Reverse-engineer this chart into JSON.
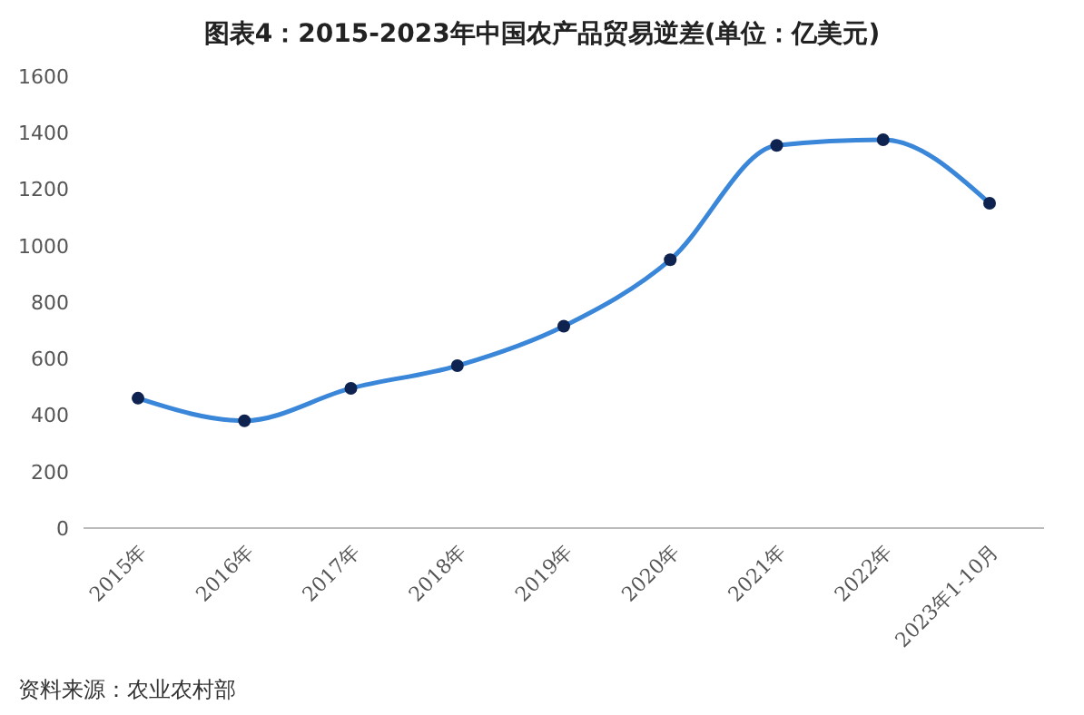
{
  "chart_data": {
    "type": "line",
    "title": "图表4：2015-2023年中国农产品贸易逆差(单位：亿美元)",
    "categories": [
      "2015年",
      "2016年",
      "2017年",
      "2018年",
      "2019年",
      "2020年",
      "2021年",
      "2022年",
      "2023年1-10月"
    ],
    "series": [
      {
        "color": "#3a86d8",
        "values": [
          460,
          380,
          495,
          575,
          715,
          950,
          1355,
          1375,
          1150
        ]
      }
    ],
    "ylim": [
      0,
      1600
    ],
    "yticks": [
      0,
      200,
      400,
      600,
      800,
      1000,
      1200,
      1400,
      1600
    ],
    "grid": false,
    "legend": false,
    "marker": "circle",
    "line_style": "solid",
    "annotations": [
      "资料来源：农业农村部"
    ]
  }
}
